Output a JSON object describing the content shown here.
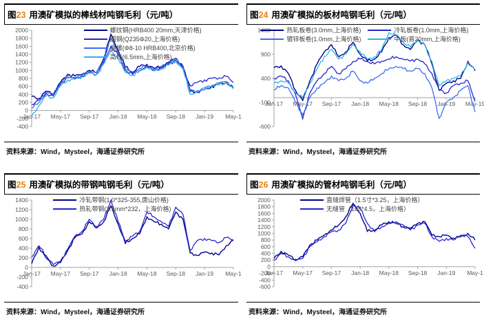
{
  "source_note": "资料来源：Wind，Mysteel，海通证券研究所",
  "colors": {
    "navy": "#00008B",
    "royal": "#2424CC",
    "bright": "#3C6BF0",
    "cyan": "#2FB0E8",
    "axis_line": "#A0A0A0",
    "tick_text": "#595959",
    "fig_num": "#E8820C"
  },
  "categories": [
    "Jan-17",
    "Feb-17",
    "Mar-17",
    "Apr-17",
    "May-17",
    "Jun-17",
    "Jul-17",
    "Aug-17",
    "Sep-17",
    "Oct-17",
    "Nov-17",
    "Dec-17",
    "Jan-18",
    "Feb-18",
    "Mar-18",
    "Apr-18",
    "May-18",
    "Jun-18",
    "Jul-18",
    "Aug-18",
    "Sep-18",
    "Oct-18",
    "Nov-18",
    "Dec-18",
    "Jan-19",
    "Feb-19",
    "Mar-19",
    "Apr-19",
    "May-19"
  ],
  "chart_data": [
    {
      "type": "line",
      "fig_char": "图",
      "fig_num": "23",
      "title": "用澳矿模拟的棒线材吨钢毛利（元/吨）",
      "ylabel": "",
      "ylim": [
        -400,
        2000
      ],
      "ytick_step": 200,
      "x_ticklabels": [
        "Jan-17",
        "May-17",
        "Sep-17",
        "Jan-18",
        "May-18",
        "Sep-18",
        "Jan-19",
        "May-1"
      ],
      "x_tick_every": 4,
      "legend": {
        "cols": 1,
        "left": "34%",
        "top": 0
      },
      "series": [
        {
          "name": "螺纹钢(HRB400 20mm,天津价格)",
          "color": "navy",
          "values": [
            350,
            300,
            480,
            420,
            700,
            900,
            860,
            900,
            1000,
            950,
            1300,
            1900,
            1500,
            1080,
            950,
            1100,
            1150,
            1050,
            1100,
            1200,
            1300,
            1100,
            500,
            450,
            520,
            600,
            650,
            700,
            560
          ]
        },
        {
          "name": "圆钢(Q235Φ20,上海价格)",
          "color": "royal",
          "values": [
            150,
            260,
            420,
            360,
            660,
            820,
            800,
            860,
            950,
            900,
            1200,
            1600,
            1380,
            1000,
            900,
            1000,
            1100,
            1000,
            1060,
            1150,
            1250,
            1060,
            620,
            700,
            760,
            800,
            810,
            850,
            700
          ]
        },
        {
          "name": "盘螺(Φ8-10 HRB400,北京价格)",
          "color": "bright",
          "values": [
            60,
            200,
            450,
            400,
            680,
            860,
            830,
            880,
            980,
            930,
            1260,
            1800,
            1440,
            1040,
            930,
            1050,
            1120,
            1030,
            1080,
            1180,
            1280,
            1080,
            460,
            500,
            560,
            620,
            680,
            720,
            560
          ]
        },
        {
          "name": "高线(6.5mm,上海价格)",
          "color": "cyan",
          "values": [
            -150,
            120,
            360,
            310,
            610,
            760,
            780,
            840,
            930,
            890,
            1150,
            1480,
            1300,
            950,
            880,
            980,
            1080,
            980,
            1030,
            1130,
            1230,
            1030,
            400,
            460,
            520,
            600,
            640,
            690,
            540
          ]
        }
      ]
    },
    {
      "type": "line",
      "fig_char": "图",
      "fig_num": "24",
      "title": "用澳矿模拟的板材吨钢毛利（元/吨）",
      "ylabel": "",
      "ylim": [
        -600,
        1400
      ],
      "ytick_step": 500,
      "x_ticklabels": [
        "Jan-17",
        "May-17",
        "Sep-17",
        "Jan-18",
        "May-18",
        "Sep-18",
        "Jan-19",
        "May-19"
      ],
      "x_tick_every": 4,
      "legend": {
        "cols": 2,
        "left": "6%",
        "top": 0
      },
      "series": [
        {
          "name": "热轧板卷(3.0mm,上海价格)",
          "color": "navy",
          "values": [
            620,
            660,
            500,
            150,
            -60,
            350,
            700,
            950,
            1100,
            850,
            950,
            1150,
            900,
            760,
            800,
            950,
            1250,
            1300,
            1100,
            1000,
            1200,
            1100,
            700,
            150,
            300,
            350,
            400,
            750,
            560
          ]
        },
        {
          "name": "冷轧板卷(1.0mm,上海价格)",
          "color": "royal",
          "values": [
            400,
            450,
            350,
            60,
            -440,
            100,
            350,
            500,
            650,
            500,
            600,
            750,
            800,
            750,
            700,
            760,
            800,
            850,
            800,
            760,
            800,
            700,
            500,
            160,
            100,
            250,
            300,
            350,
            -80
          ]
        },
        {
          "name": "镀锌板卷(1.0mm,上海价格)",
          "color": "bright",
          "values": [
            160,
            250,
            200,
            -100,
            -360,
            0,
            200,
            300,
            450,
            350,
            400,
            550,
            350,
            300,
            400,
            500,
            600,
            650,
            600,
            550,
            600,
            500,
            200,
            -430,
            -100,
            0,
            150,
            250,
            -300
          ]
        },
        {
          "name": "中板(普20mm,上海价格)",
          "color": "cyan",
          "values": [
            300,
            350,
            300,
            100,
            0,
            300,
            600,
            850,
            1000,
            800,
            900,
            1100,
            950,
            800,
            850,
            1000,
            1350,
            1300,
            1150,
            1050,
            1200,
            1100,
            750,
            250,
            350,
            400,
            450,
            720,
            580
          ]
        }
      ]
    },
    {
      "type": "line",
      "fig_char": "图",
      "fig_num": "25",
      "title": "用澳矿模拟的带钢吨钢毛利（元/吨）",
      "ylabel": "",
      "ylim": [
        -400,
        1400
      ],
      "ytick_step": 200,
      "x_ticklabels": [
        "Jan-17",
        "May-17",
        "Sep-17",
        "Jan-18",
        "May-18",
        "Sep-18",
        "Jan-19",
        "May-1"
      ],
      "x_tick_every": 4,
      "legend": {
        "cols": 1,
        "left": "21%",
        "top": 0
      },
      "series": [
        {
          "name": "冷轧带钢(1.0*325-355,唐山价格)",
          "color": "navy",
          "values": [
            80,
            420,
            200,
            30,
            100,
            350,
            620,
            700,
            950,
            820,
            950,
            1280,
            900,
            500,
            600,
            700,
            1050,
            950,
            900,
            800,
            1150,
            1000,
            300,
            250,
            320,
            300,
            260,
            450,
            560
          ]
        },
        {
          "name": "热轧带钢(2.5mm*232，上海价格)",
          "color": "royal",
          "values": [
            220,
            450,
            250,
            60,
            130,
            380,
            650,
            750,
            1000,
            850,
            1000,
            1400,
            950,
            550,
            650,
            750,
            1150,
            1050,
            950,
            850,
            1250,
            1100,
            350,
            560,
            600,
            560,
            520,
            620,
            570
          ]
        }
      ]
    },
    {
      "type": "line",
      "fig_char": "图",
      "fig_num": "26",
      "title": "用澳矿模拟的管材吨钢毛利（元/吨）",
      "ylabel": "",
      "ylim": [
        -600,
        2000
      ],
      "ytick_step": 200,
      "x_ticklabels": [
        "Jan-17",
        "May-17",
        "Sep-17",
        "Jan-18",
        "May-18",
        "Sep-18",
        "Jan-19",
        "May-1"
      ],
      "x_tick_every": 4,
      "legend": {
        "cols": 1,
        "left": "23%",
        "top": 0
      },
      "series": [
        {
          "name": "直缝焊管（1.5寸*3.25，上海价格）",
          "color": "navy",
          "values": [
            250,
            460,
            350,
            220,
            300,
            650,
            800,
            950,
            1100,
            1250,
            1500,
            1900,
            1600,
            1060,
            1100,
            1250,
            1350,
            1300,
            1200,
            1150,
            1300,
            1350,
            950,
            900,
            950,
            860,
            900,
            1000,
            800
          ]
        },
        {
          "name": "无缝管（108*4.5，上海价格）",
          "color": "royal",
          "values": [
            200,
            400,
            300,
            180,
            250,
            600,
            750,
            900,
            1050,
            1100,
            1300,
            1850,
            1750,
            1300,
            1050,
            1200,
            1300,
            1350,
            1250,
            1100,
            1250,
            1300,
            900,
            760,
            850,
            800,
            950,
            900,
            550
          ]
        }
      ]
    }
  ]
}
